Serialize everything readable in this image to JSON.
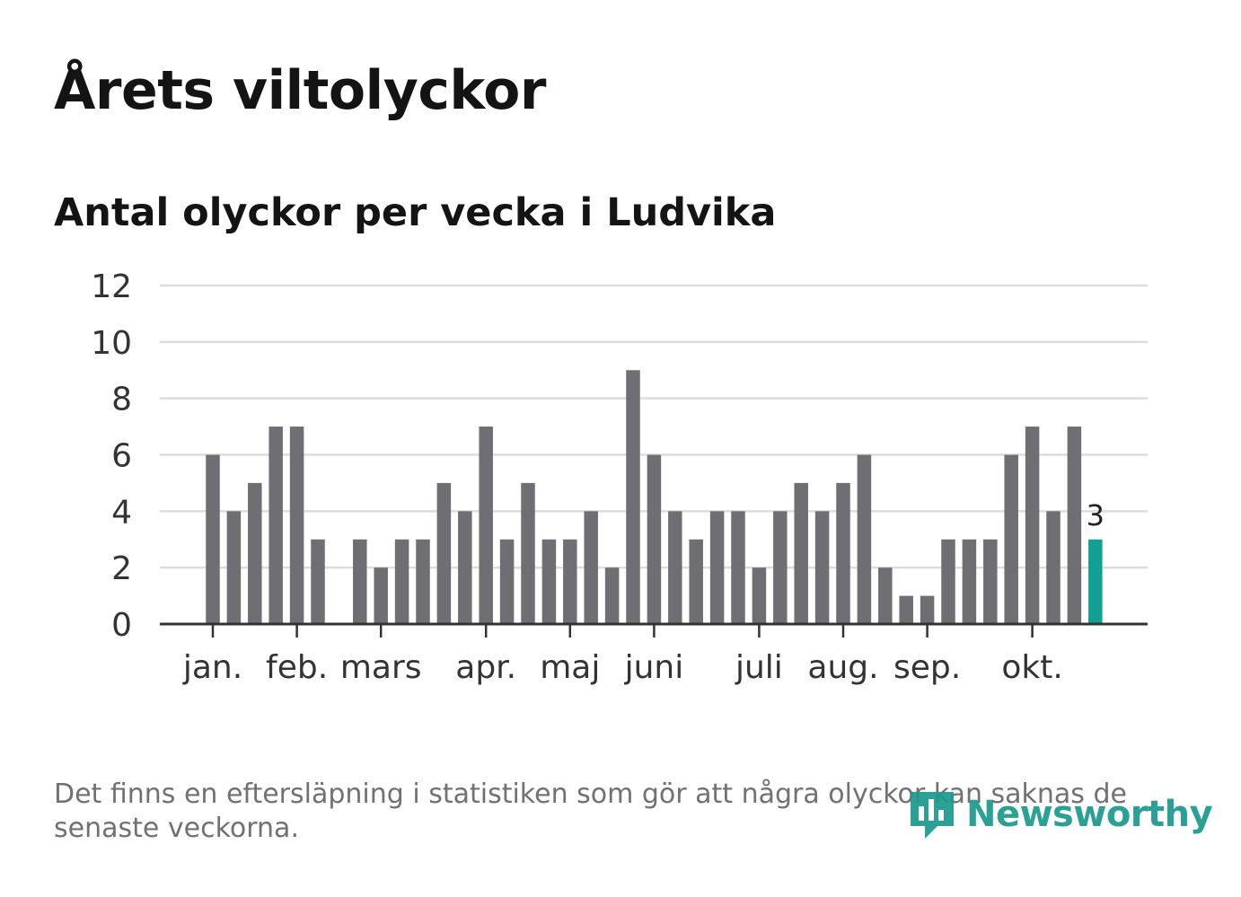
{
  "title": "Årets viltolyckor",
  "subtitle": "Antal olyckor per vecka i Ludvika",
  "footnote": "Det finns en eftersläpning i statistiken som gör att några olyckor kan saknas de senaste veckorna.",
  "brand": {
    "name": "Newsworthy",
    "color": "#1a9a8e"
  },
  "chart_data": {
    "type": "bar",
    "title": "Antal olyckor per vecka i Ludvika",
    "xlabel": "",
    "ylabel": "",
    "ylim": [
      0,
      12
    ],
    "yticks": [
      0,
      2,
      4,
      6,
      8,
      10,
      12
    ],
    "grid": true,
    "values": [
      6,
      4,
      5,
      7,
      7,
      3,
      0,
      3,
      2,
      3,
      3,
      5,
      4,
      7,
      3,
      5,
      3,
      3,
      4,
      2,
      9,
      6,
      4,
      3,
      4,
      4,
      2,
      4,
      5,
      4,
      5,
      6,
      2,
      1,
      1,
      3,
      3,
      3,
      6,
      7,
      4,
      7,
      3
    ],
    "month_labels": [
      {
        "label": "jan.",
        "week_index": 0
      },
      {
        "label": "feb.",
        "week_index": 4
      },
      {
        "label": "mars",
        "week_index": 8
      },
      {
        "label": "apr.",
        "week_index": 13
      },
      {
        "label": "maj",
        "week_index": 17
      },
      {
        "label": "juni",
        "week_index": 21
      },
      {
        "label": "juli",
        "week_index": 26
      },
      {
        "label": "aug.",
        "week_index": 30
      },
      {
        "label": "sep.",
        "week_index": 34
      },
      {
        "label": "okt.",
        "week_index": 39
      }
    ],
    "highlight": {
      "week_index": 42,
      "value_label": "3"
    },
    "colors": {
      "bar": "#6f6e73",
      "highlight": "#139f92",
      "grid": "#dddddd",
      "axis": "#333333"
    }
  }
}
